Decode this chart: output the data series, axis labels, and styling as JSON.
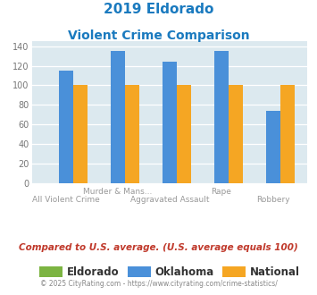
{
  "title_line1": "2019 Eldorado",
  "title_line2": "Violent Crime Comparison",
  "cat_labels_row1": [
    "",
    "Murder & Mans...",
    "",
    "Rape",
    ""
  ],
  "cat_labels_row2": [
    "All Violent Crime",
    "",
    "Aggravated Assault",
    "",
    "Robbery"
  ],
  "eldorado_values": [
    0,
    0,
    0,
    0,
    0
  ],
  "oklahoma_values": [
    115,
    135,
    124,
    135,
    74
  ],
  "national_values": [
    100,
    100,
    100,
    100,
    100
  ],
  "eldorado_color": "#7cb442",
  "oklahoma_color": "#4a90d9",
  "national_color": "#f5a623",
  "bg_color": "#dce9ef",
  "title_color": "#1a7abf",
  "ylim": [
    0,
    145
  ],
  "yticks": [
    0,
    20,
    40,
    60,
    80,
    100,
    120,
    140
  ],
  "grid_color": "#ffffff",
  "note_text": "Compared to U.S. average. (U.S. average equals 100)",
  "note_color": "#c0392b",
  "footer_text": "© 2025 CityRating.com - https://www.cityrating.com/crime-statistics/",
  "footer_color": "#888888",
  "bar_width": 0.28
}
